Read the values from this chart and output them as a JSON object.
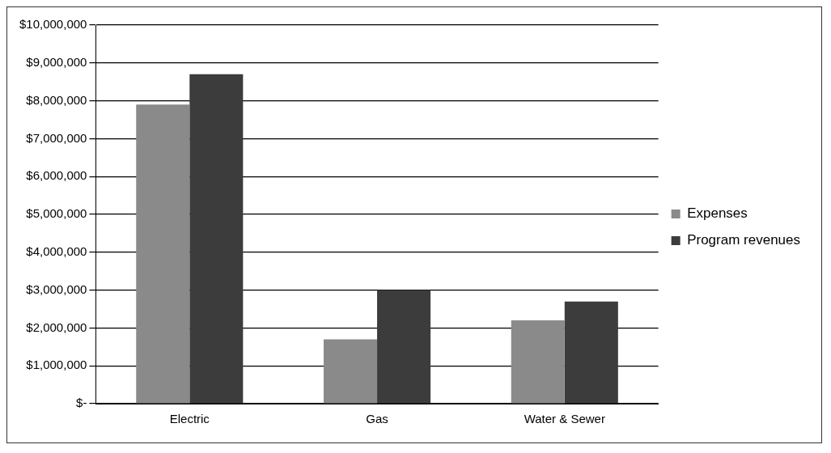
{
  "chart_data": {
    "type": "bar",
    "categories": [
      "Electric",
      "Gas",
      "Water & Sewer"
    ],
    "series": [
      {
        "name": "Expenses",
        "color": "#8a8a8a",
        "values": [
          7900000.0,
          1700000.0,
          2200000.0
        ]
      },
      {
        "name": "Program revenues",
        "color": "#3c3c3c",
        "values": [
          8700000.0,
          3000000.0,
          2700000.0
        ]
      }
    ],
    "ylim": [
      0,
      10000000
    ],
    "yticks": [
      {
        "value": 0,
        "label": "$-"
      },
      {
        "value": 1000000,
        "label": "$1,000,000"
      },
      {
        "value": 2000000,
        "label": "$2,000,000"
      },
      {
        "value": 3000000,
        "label": "$3,000,000"
      },
      {
        "value": 4000000,
        "label": "$4,000,000"
      },
      {
        "value": 5000000,
        "label": "$5,000,000"
      },
      {
        "value": 6000000,
        "label": "$6,000,000"
      },
      {
        "value": 7000000,
        "label": "$7,000,000"
      },
      {
        "value": 8000000,
        "label": "$8,000,000"
      },
      {
        "value": 9000000,
        "label": "$9,000,000"
      },
      {
        "value": 10000000,
        "label": "$10,000,000"
      }
    ],
    "grid": "y",
    "legend": "right"
  }
}
